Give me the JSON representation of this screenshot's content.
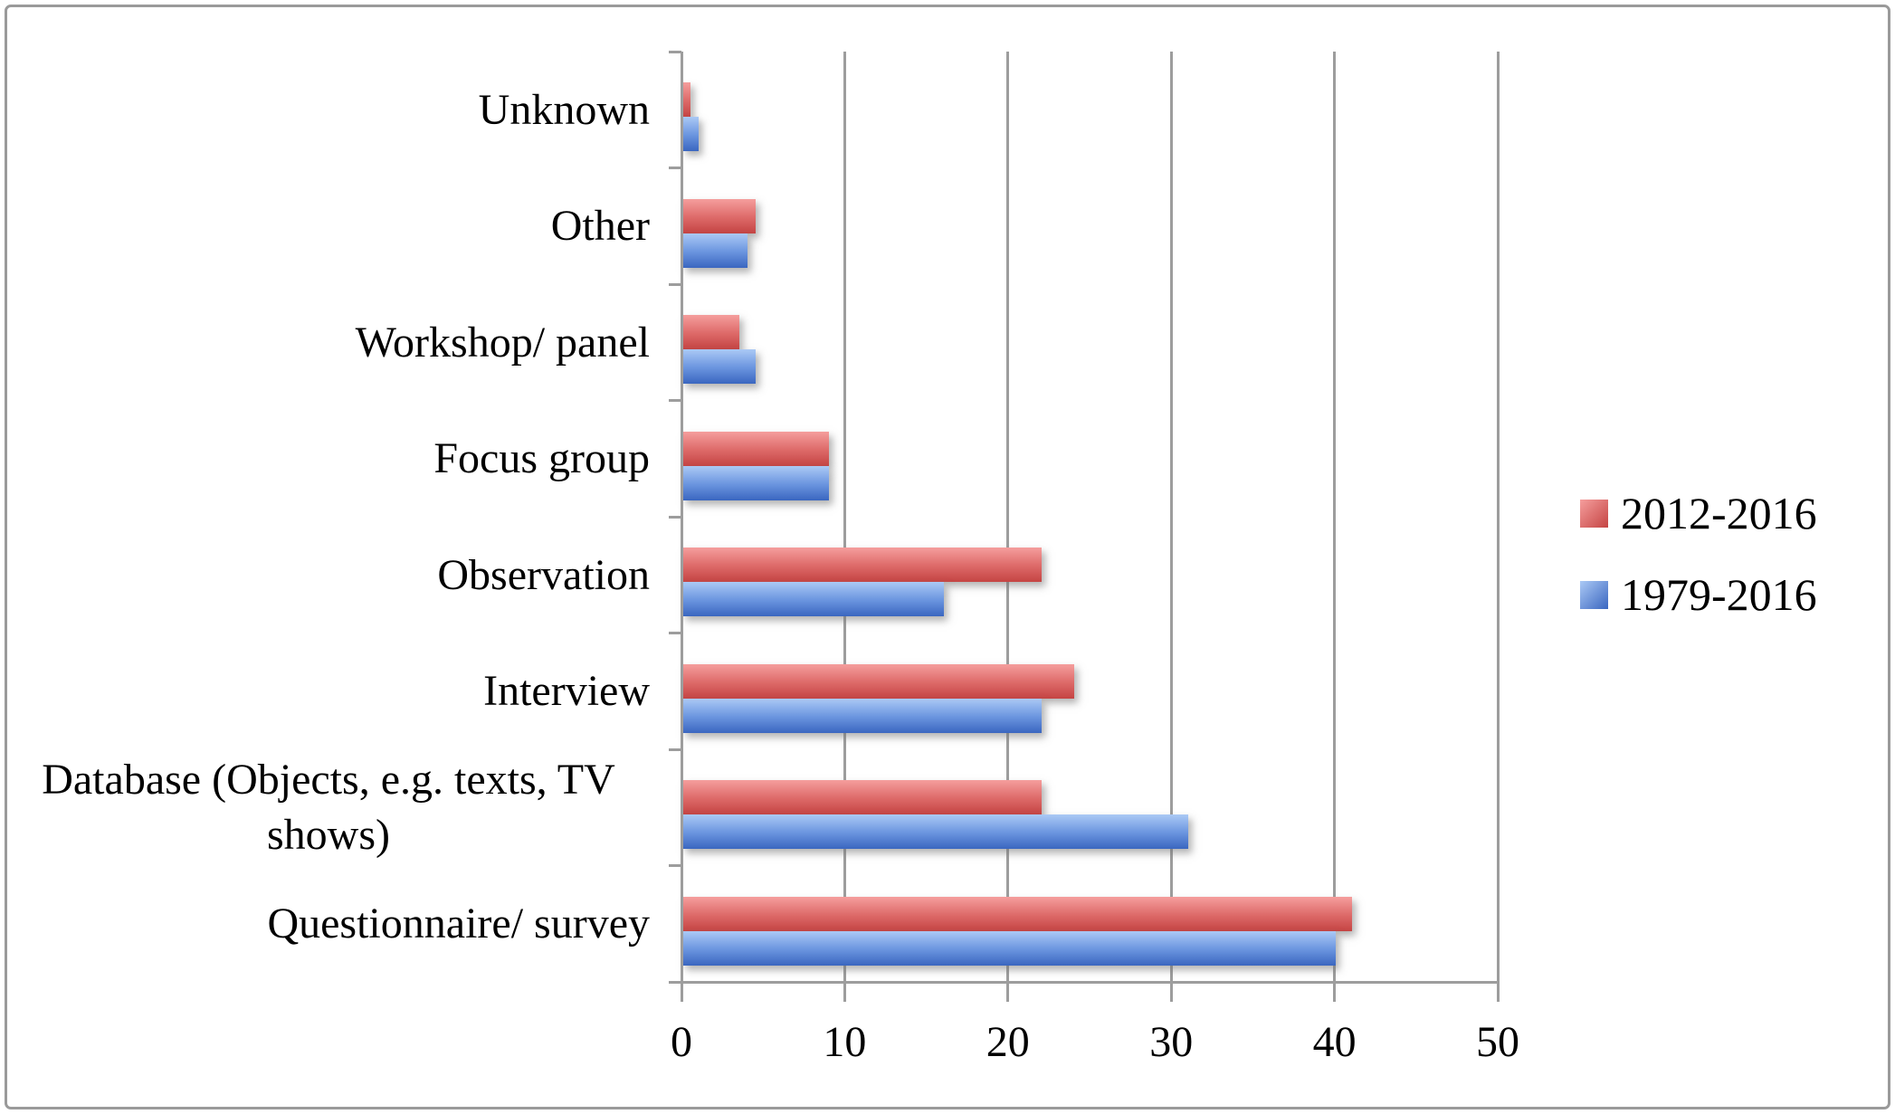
{
  "chart_data": {
    "type": "bar",
    "orientation": "horizontal",
    "title": "",
    "xlabel": "",
    "ylabel": "",
    "categories": [
      "Unknown",
      "Other",
      "Workshop/ panel",
      "Focus group",
      "Observation",
      "Interview",
      "Database (Objects, e.g. texts, TV shows)",
      "Questionnaire/ survey"
    ],
    "series": [
      {
        "name": "2012-2016",
        "color": "#CC4B4A",
        "gradient": [
          "#F59E9D",
          "#DE6B6A",
          "#C54443"
        ],
        "values": [
          0.5,
          4.5,
          3.5,
          9,
          22,
          24,
          22,
          41
        ]
      },
      {
        "name": "1979-2016",
        "color": "#4470C8",
        "gradient": [
          "#ABC9F5",
          "#6C96E0",
          "#3A66C0"
        ],
        "values": [
          1,
          4,
          4.5,
          9,
          16,
          22,
          31,
          40
        ]
      }
    ],
    "x_ticks": [
      0,
      10,
      20,
      30,
      40,
      50
    ],
    "xlim": [
      0,
      50
    ],
    "grid": true,
    "legend_position": "right"
  },
  "colors": {
    "axis_gray": "#9d9d9d",
    "frame_border": "#9a9a9a",
    "background": "#ffffff",
    "text": "#000000"
  }
}
